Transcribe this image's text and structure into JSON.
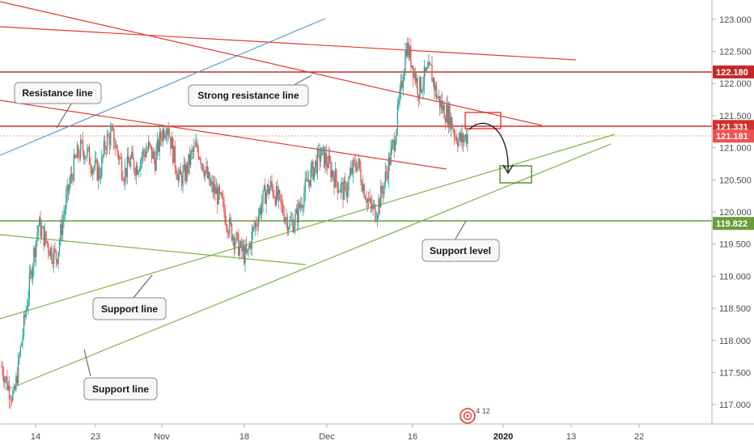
{
  "chart_data": {
    "type": "candlestick",
    "y_axis": {
      "min": 116.7,
      "max": 123.3,
      "ticks": [
        "117.000",
        "117.500",
        "118.000",
        "118.500",
        "119.000",
        "119.500",
        "120.000",
        "120.500",
        "121.000",
        "121.500",
        "122.000",
        "122.500",
        "123.000"
      ]
    },
    "x_axis": {
      "ticks": [
        {
          "label": "14",
          "bold": false
        },
        {
          "label": "23",
          "bold": false
        },
        {
          "label": "Nov",
          "bold": false
        },
        {
          "label": "18",
          "bold": false
        },
        {
          "label": "Dec",
          "bold": false
        },
        {
          "label": "16",
          "bold": false
        },
        {
          "label": "2020",
          "bold": true
        },
        {
          "label": "13",
          "bold": false
        },
        {
          "label": "22",
          "bold": false
        }
      ]
    },
    "price_levels": [
      {
        "value": "122.180",
        "color": "#c62828"
      },
      {
        "value": "121.331",
        "color": "#d32f2f"
      },
      {
        "value": "121.181",
        "color": "#ef5350"
      },
      {
        "value": "119.822",
        "color": "#689f38"
      }
    ],
    "candles_close_path": [
      117.6,
      117.3,
      117.1,
      117.8,
      118.5,
      119.2,
      119.8,
      119.6,
      119.4,
      119.3,
      119.9,
      120.4,
      120.8,
      121.0,
      120.9,
      120.7,
      120.6,
      121.1,
      121.2,
      120.9,
      120.6,
      120.8,
      120.7,
      120.9,
      121.0,
      120.8,
      121.2,
      121.4,
      120.9,
      120.5,
      120.6,
      120.9,
      121.0,
      120.7,
      120.4,
      120.3,
      120.1,
      119.8,
      119.6,
      119.4,
      119.3,
      119.7,
      120.0,
      120.3,
      120.4,
      120.2,
      120.0,
      119.8,
      119.9,
      120.2,
      120.5,
      120.7,
      120.9,
      120.8,
      120.6,
      120.4,
      120.3,
      120.6,
      120.8,
      120.4,
      120.1,
      120.0,
      120.3,
      120.7,
      121.1,
      121.8,
      122.6,
      122.3,
      121.9,
      122.1,
      122.2,
      121.8,
      121.6,
      121.5,
      121.2,
      121.1,
      121.2
    ],
    "colors": {
      "up": "#26a69a",
      "down": "#ef5350",
      "resistance": "#e53935",
      "support": "#7cb342",
      "channel": "#5b9bd5"
    },
    "annotations": {
      "resistance": "Resistance line",
      "strong_resistance": "Strong resistance line",
      "support_line_1": "Support line",
      "support_line_2": "Support line",
      "support_level": "Support level"
    },
    "event_marker": {
      "icon": "target-icon",
      "counts": "4 12"
    }
  }
}
